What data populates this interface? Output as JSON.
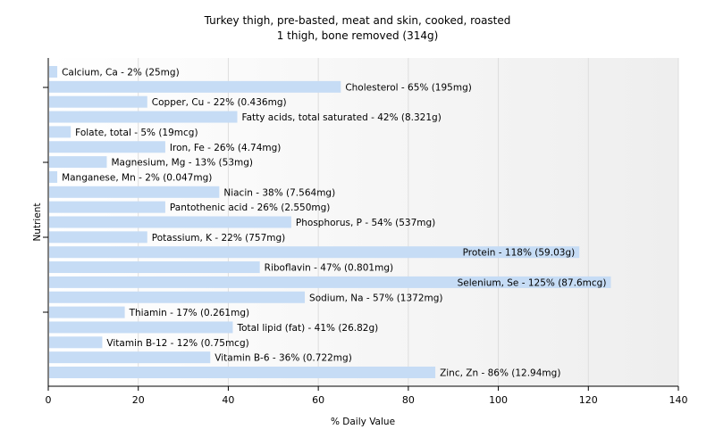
{
  "chart_data": {
    "type": "bar",
    "orientation": "horizontal",
    "title": "Turkey thigh, pre-basted, meat and skin, cooked, roasted",
    "subtitle": "1 thigh, bone removed (314g)",
    "xlabel": "% Daily Value",
    "ylabel": "Nutrient",
    "xlim": [
      0,
      140
    ],
    "xticks": [
      0,
      20,
      40,
      60,
      80,
      100,
      120,
      140
    ],
    "grid": true,
    "bar_color": "#c6dcf5",
    "categories": [
      "Calcium, Ca",
      "Cholesterol",
      "Copper, Cu",
      "Fatty acids, total saturated",
      "Folate, total",
      "Iron, Fe",
      "Magnesium, Mg",
      "Manganese, Mn",
      "Niacin",
      "Pantothenic acid",
      "Phosphorus, P",
      "Potassium, K",
      "Protein",
      "Riboflavin",
      "Selenium, Se",
      "Sodium, Na",
      "Thiamin",
      "Total lipid (fat)",
      "Vitamin B-12",
      "Vitamin B-6",
      "Zinc, Zn"
    ],
    "values": [
      2,
      65,
      22,
      42,
      5,
      26,
      13,
      2,
      38,
      26,
      54,
      22,
      118,
      47,
      125,
      57,
      17,
      41,
      12,
      36,
      86
    ],
    "labels": [
      "Calcium, Ca - 2% (25mg)",
      "Cholesterol - 65% (195mg)",
      "Copper, Cu - 22% (0.436mg)",
      "Fatty acids, total saturated - 42% (8.321g)",
      "Folate, total - 5% (19mcg)",
      "Iron, Fe - 26% (4.74mg)",
      "Magnesium, Mg - 13% (53mg)",
      "Manganese, Mn - 2% (0.047mg)",
      "Niacin - 38% (7.564mg)",
      "Pantothenic acid - 26% (2.550mg)",
      "Phosphorus, P - 54% (537mg)",
      "Potassium, K - 22% (757mg)",
      "Protein - 118% (59.03g)",
      "Riboflavin - 47% (0.801mg)",
      "Selenium, Se - 125% (87.6mcg)",
      "Sodium, Na - 57% (1372mg)",
      "Thiamin - 17% (0.261mg)",
      "Total lipid (fat) - 41% (26.82g)",
      "Vitamin B-12 - 12% (0.75mcg)",
      "Vitamin B-6 - 36% (0.722mg)",
      "Zinc, Zn - 86% (12.94mg)"
    ]
  }
}
